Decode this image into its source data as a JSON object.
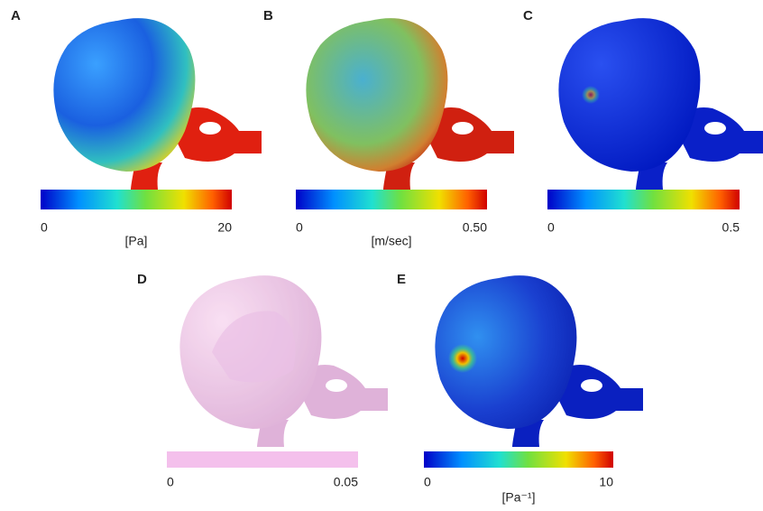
{
  "panels": [
    {
      "label": "A",
      "scale_min": "0",
      "scale_max": "20",
      "unit": "[Pa]"
    },
    {
      "label": "B",
      "scale_min": "0",
      "scale_max": "0.50",
      "unit": "[m/sec]"
    },
    {
      "label": "C",
      "scale_min": "0",
      "scale_max": "0.5"
    },
    {
      "label": "D",
      "scale_min": "0",
      "scale_max": "0.05"
    },
    {
      "label": "E",
      "scale_min": "0",
      "scale_max": "10",
      "unit": "[Pa⁻¹]"
    }
  ]
}
